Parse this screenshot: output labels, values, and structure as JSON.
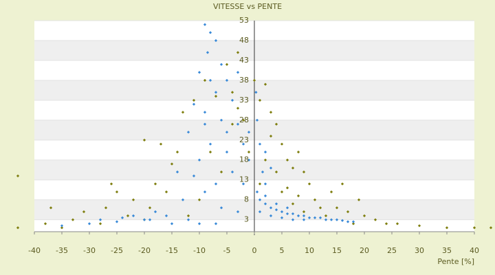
{
  "chart_data": {
    "type": "scatter",
    "title": "VITESSE vs PENTE",
    "x_label": "Pente [%]",
    "xlim": [
      -40,
      40
    ],
    "xticks": [
      -40,
      -35,
      -30,
      -25,
      -20,
      -15,
      -10,
      -5,
      0,
      5,
      10,
      15,
      20,
      25,
      30,
      35,
      40
    ],
    "ylim": [
      0,
      53
    ],
    "yticks": [
      3,
      8,
      13,
      18,
      23,
      28,
      33,
      38,
      43,
      48,
      53
    ],
    "grid": true,
    "series": [
      {
        "color": "#7f7f10",
        "x": [
          -43,
          -38,
          -33,
          -31,
          -27,
          -25,
          -22,
          -20,
          -18,
          -15,
          -17,
          -13,
          -14,
          -11,
          -9,
          -7,
          -4,
          -3,
          -2,
          -1,
          -6,
          -10,
          -12,
          -28,
          -35,
          -43,
          -26,
          -20,
          -16,
          -8,
          -5,
          -3,
          -4,
          0,
          1,
          2,
          3,
          4,
          5,
          6,
          7,
          8,
          9,
          10,
          11,
          12,
          14,
          15,
          16,
          17,
          19,
          20,
          22,
          24,
          26,
          30,
          35,
          40,
          43,
          2,
          3,
          5,
          7,
          9,
          13,
          18,
          1,
          4,
          6,
          8,
          -19,
          -23,
          -37
        ],
        "values": [
          1,
          2,
          3,
          5,
          6,
          10,
          8,
          3,
          12,
          17,
          22,
          30,
          20,
          33,
          38,
          34,
          35,
          31,
          28,
          20,
          15,
          8,
          4,
          2,
          1,
          14,
          12,
          23,
          10,
          20,
          42,
          45,
          27,
          38,
          33,
          37,
          30,
          27,
          22,
          18,
          16,
          20,
          15,
          12,
          8,
          6,
          10,
          6,
          12,
          5,
          8,
          4,
          3,
          2,
          2,
          1.5,
          1,
          1,
          1,
          18,
          24,
          10,
          7,
          5,
          4,
          2,
          12,
          15,
          11,
          9,
          6,
          4,
          6
        ]
      },
      {
        "color": "#3a8ad8",
        "x": [
          -9,
          -8,
          -7,
          -8.5,
          -10,
          -6,
          -5,
          -7,
          -11,
          -9,
          -4,
          -6,
          -12,
          -8,
          -3,
          -5,
          -10,
          -14,
          -7,
          -2,
          -1,
          -4,
          -13,
          -9,
          -6,
          -16,
          -20,
          -25,
          -30,
          -18,
          -22,
          -28,
          -35,
          -12,
          -15,
          -3,
          -1,
          0.5,
          1,
          1.5,
          2,
          0.5,
          1,
          2,
          3,
          4,
          5,
          6,
          7,
          8,
          9,
          10,
          11,
          12,
          13,
          14,
          15,
          16,
          17,
          18,
          3,
          5,
          7,
          9,
          2,
          1,
          4,
          6,
          -2,
          -5,
          -3,
          -8,
          -9,
          -11,
          -19,
          -24,
          -7,
          -10,
          0.3,
          2,
          3
        ],
        "values": [
          52,
          50,
          48,
          45,
          40,
          42,
          38,
          35,
          32,
          30,
          33,
          28,
          25,
          22,
          27,
          20,
          18,
          15,
          12,
          22,
          25,
          15,
          8,
          10,
          6,
          4,
          3,
          2.5,
          2,
          5,
          4,
          3,
          1.5,
          3,
          2,
          5,
          18,
          28,
          22,
          15,
          12,
          10,
          8,
          7,
          6,
          5.5,
          5,
          4.5,
          4.5,
          4,
          4,
          3.5,
          3.5,
          3.5,
          3,
          3,
          3,
          2.8,
          2.5,
          2.5,
          4,
          3.5,
          3,
          3,
          9,
          5,
          7,
          6,
          12,
          25,
          40,
          38,
          27,
          14,
          3,
          3.5,
          2,
          2,
          35,
          20,
          16
        ]
      }
    ]
  }
}
